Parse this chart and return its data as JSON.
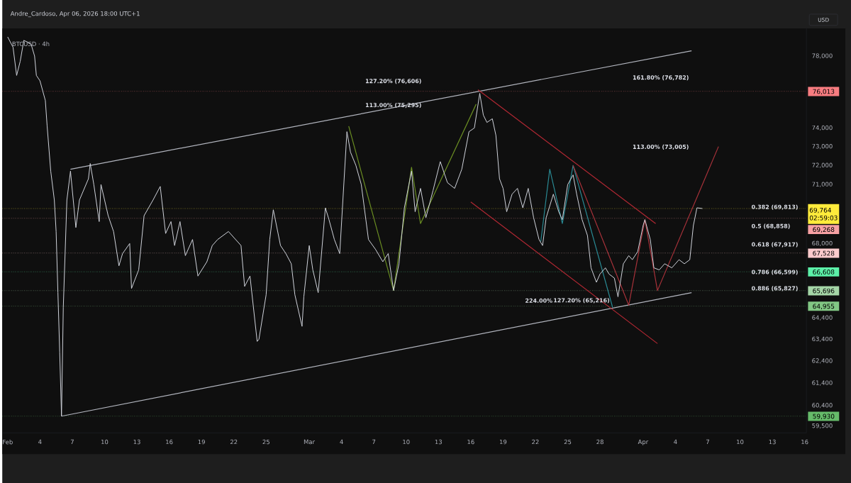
{
  "chart_data": {
    "type": "line",
    "title": "Andre_Cardoso, Apr 06, 2026 18:00 UTC+1",
    "subtitle": "BTCUSD · 4h",
    "ylabel": "USD",
    "log": true,
    "xlim": [
      "2026-01-31T12:00",
      "2026-04-16T04:00"
    ],
    "ylim": [
      59200,
      79600
    ],
    "xticks": [
      {
        "value": "2026-02-01",
        "label": "Feb"
      },
      {
        "value": "2026-02-04",
        "label": "4"
      },
      {
        "value": "2026-02-07",
        "label": "7"
      },
      {
        "value": "2026-02-10",
        "label": "10"
      },
      {
        "value": "2026-02-13",
        "label": "13"
      },
      {
        "value": "2026-02-16",
        "label": "16"
      },
      {
        "value": "2026-02-19",
        "label": "19"
      },
      {
        "value": "2026-02-22",
        "label": "22"
      },
      {
        "value": "2026-02-25",
        "label": "25"
      },
      {
        "value": "2026-03-01",
        "label": "Mar"
      },
      {
        "value": "2026-03-04",
        "label": "4"
      },
      {
        "value": "2026-03-07",
        "label": "7"
      },
      {
        "value": "2026-03-10",
        "label": "10"
      },
      {
        "value": "2026-03-13",
        "label": "13"
      },
      {
        "value": "2026-03-16",
        "label": "16"
      },
      {
        "value": "2026-03-19",
        "label": "19"
      },
      {
        "value": "2026-03-22",
        "label": "22"
      },
      {
        "value": "2026-03-25",
        "label": "25"
      },
      {
        "value": "2026-03-28",
        "label": "28"
      },
      {
        "value": "2026-04-01",
        "label": "Apr"
      },
      {
        "value": "2026-04-04",
        "label": "4"
      },
      {
        "value": "2026-04-07",
        "label": "7"
      },
      {
        "value": "2026-04-10",
        "label": "10"
      },
      {
        "value": "2026-04-13",
        "label": "13"
      },
      {
        "value": "2026-04-16",
        "label": "16"
      }
    ],
    "yticks": [
      {
        "value": 78000,
        "label": "78,000"
      },
      {
        "value": 74000,
        "label": "74,000"
      },
      {
        "value": 73000,
        "label": "73,000"
      },
      {
        "value": 72000,
        "label": "72,000"
      },
      {
        "value": 71000,
        "label": "71,000"
      },
      {
        "value": 68000,
        "label": "68,000"
      },
      {
        "value": 64400,
        "label": "64,400"
      },
      {
        "value": 63400,
        "label": "63,400"
      },
      {
        "value": 62400,
        "label": "62,400"
      },
      {
        "value": 61400,
        "label": "61,400"
      },
      {
        "value": 60400,
        "label": "60,400"
      },
      {
        "value": 59500,
        "label": "59,500"
      }
    ],
    "series": [
      {
        "color": "#d1d4dc",
        "x": [
          "2026-02-01T00:00",
          "2026-02-01T12:00",
          "2026-02-01T20:00",
          "2026-02-02T04:00",
          "2026-02-02T12:00",
          "2026-02-03T04:00",
          "2026-02-03T12:00",
          "2026-02-03T16:00",
          "2026-02-04T00:00",
          "2026-02-04T12:00",
          "2026-02-04T16:00",
          "2026-02-05T00:00",
          "2026-02-05T08:00",
          "2026-02-05T12:00",
          "2026-02-05T16:00",
          "2026-02-05T20:00",
          "2026-02-06T00:00",
          "2026-02-06T04:00",
          "2026-02-06T12:00",
          "2026-02-06T20:00",
          "2026-02-07T08:00",
          "2026-02-07T16:00",
          "2026-02-08T12:00",
          "2026-02-08T16:00",
          "2026-02-09T00:00",
          "2026-02-09T12:00",
          "2026-02-09T16:00",
          "2026-02-10T08:00",
          "2026-02-10T20:00",
          "2026-02-11T08:00",
          "2026-02-11T16:00",
          "2026-02-12T08:00",
          "2026-02-12T12:00",
          "2026-02-13T04:00",
          "2026-02-13T16:00",
          "2026-02-14T12:00",
          "2026-02-15T04:00",
          "2026-02-15T16:00",
          "2026-02-16T04:00",
          "2026-02-16T12:00",
          "2026-02-17T00:00",
          "2026-02-17T12:00",
          "2026-02-18T04:00",
          "2026-02-18T16:00",
          "2026-02-19T12:00",
          "2026-02-20T00:00",
          "2026-02-20T12:00",
          "2026-02-21T12:00",
          "2026-02-22T16:00",
          "2026-02-23T00:00",
          "2026-02-23T12:00",
          "2026-02-24T04:00",
          "2026-02-24T08:00",
          "2026-02-25T00:00",
          "2026-02-25T08:00",
          "2026-02-25T16:00",
          "2026-02-26T08:00",
          "2026-02-26T20:00",
          "2026-02-27T08:00",
          "2026-02-27T16:00",
          "2026-02-28T08:00",
          "2026-02-28T12:00",
          "2026-03-01T00:00",
          "2026-03-01T08:00",
          "2026-03-01T20:00",
          "2026-03-02T12:00",
          "2026-03-02T20:00",
          "2026-03-03T08:00",
          "2026-03-03T20:00",
          "2026-03-04T12:00",
          "2026-03-04T20:00",
          "2026-03-05T08:00",
          "2026-03-05T20:00",
          "2026-03-06T12:00",
          "2026-03-07T04:00",
          "2026-03-07T20:00",
          "2026-03-08T08:00",
          "2026-03-08T20:00",
          "2026-03-09T08:00",
          "2026-03-09T20:00",
          "2026-03-10T12:00",
          "2026-03-10T20:00",
          "2026-03-11T08:00",
          "2026-03-11T20:00",
          "2026-03-12T12:00",
          "2026-03-13T04:00",
          "2026-03-13T20:00",
          "2026-03-14T12:00",
          "2026-03-15T04:00",
          "2026-03-15T20:00",
          "2026-03-16T08:00",
          "2026-03-16T20:00",
          "2026-03-17T04:00",
          "2026-03-17T12:00",
          "2026-03-18T00:00",
          "2026-03-18T08:00",
          "2026-03-18T16:00",
          "2026-03-19T00:00",
          "2026-03-19T08:00",
          "2026-03-19T20:00",
          "2026-03-20T08:00",
          "2026-03-20T20:00",
          "2026-03-21T08:00",
          "2026-03-21T20:00",
          "2026-03-22T08:00",
          "2026-03-22T16:00",
          "2026-03-23T00:00",
          "2026-03-23T16:00",
          "2026-03-24T04:00",
          "2026-03-24T12:00",
          "2026-03-25T00:00",
          "2026-03-25T12:00",
          "2026-03-25T20:00",
          "2026-03-26T08:00",
          "2026-03-26T20:00",
          "2026-03-27T04:00",
          "2026-03-27T16:00",
          "2026-03-28T00:00",
          "2026-03-28T12:00",
          "2026-03-28T20:00",
          "2026-03-29T08:00",
          "2026-03-29T16:00",
          "2026-03-30T04:00",
          "2026-03-30T16:00",
          "2026-03-31T00:00",
          "2026-03-31T12:00",
          "2026-04-01T00:00",
          "2026-04-01T04:00",
          "2026-04-01T16:00",
          "2026-04-02T00:00",
          "2026-04-02T12:00",
          "2026-04-03T00:00",
          "2026-04-03T16:00",
          "2026-04-04T08:00",
          "2026-04-04T20:00",
          "2026-04-05T08:00",
          "2026-04-05T16:00",
          "2026-04-06T00:00",
          "2026-04-06T12:00"
        ],
        "values": [
          79100,
          78500,
          76900,
          77700,
          78900,
          78700,
          78000,
          76900,
          76600,
          75500,
          74100,
          71700,
          70200,
          68600,
          65600,
          62800,
          59930,
          64900,
          70200,
          71700,
          68800,
          70200,
          71300,
          72100,
          71000,
          69100,
          71000,
          69400,
          68600,
          66900,
          67500,
          68000,
          65800,
          66700,
          69400,
          70200,
          70900,
          68500,
          69100,
          67900,
          69100,
          67400,
          68200,
          66400,
          67100,
          67900,
          68200,
          68600,
          67900,
          65900,
          66400,
          63300,
          63400,
          65500,
          68200,
          69700,
          67900,
          67500,
          67000,
          65500,
          64000,
          65400,
          67900,
          66700,
          65600,
          69800,
          69200,
          68200,
          67500,
          73800,
          72700,
          72000,
          71000,
          68200,
          67700,
          67100,
          67500,
          65700,
          67000,
          69800,
          71700,
          69600,
          70800,
          69300,
          70700,
          72200,
          71100,
          70800,
          71800,
          73800,
          74000,
          75900,
          74700,
          74300,
          74500,
          73600,
          71300,
          70800,
          69600,
          70500,
          70800,
          69800,
          70800,
          69300,
          68200,
          67900,
          69300,
          70500,
          69600,
          69200,
          71000,
          71500,
          70500,
          69200,
          68400,
          66800,
          66100,
          66500,
          66800,
          66500,
          66300,
          65400,
          67000,
          67400,
          67200,
          67600,
          68900,
          69200,
          68200,
          66800,
          66700,
          67000,
          66800,
          67200,
          67000,
          67200,
          68900,
          69800,
          69764
        ]
      },
      {
        "color": "#b2b5be",
        "x": [
          "2026-02-06T20:00",
          "2026-04-05T12:00"
        ],
        "values": [
          71800,
          78300
        ]
      },
      {
        "color": "#b2b5be",
        "x": [
          "2026-02-06T00:00",
          "2026-04-05T12:00"
        ],
        "values": [
          59930,
          65600
        ]
      },
      {
        "color": "#b22833",
        "x": [
          "2026-03-16T16:00",
          "2026-04-02T04:00"
        ],
        "values": [
          76100,
          69000
        ]
      },
      {
        "color": "#b22833",
        "x": [
          "2026-03-16T00:00",
          "2026-04-02T08:00"
        ],
        "values": [
          70100,
          63200
        ]
      },
      {
        "color": "#6b8e23",
        "x": [
          "2026-03-04T16:00",
          "2026-03-08T20:00",
          "2026-03-10T12:00",
          "2026-03-11T08:00",
          "2026-03-16T12:00"
        ],
        "values": [
          74100,
          65700,
          71900,
          69000,
          75300
        ]
      },
      {
        "color": "#2a8a94",
        "x": [
          "2026-03-22T12:00",
          "2026-03-23T08:00",
          "2026-03-24T12:00",
          "2026-03-25T12:00",
          "2026-03-29T04:00"
        ],
        "values": [
          68100,
          71800,
          69000,
          72000,
          64900
        ]
      },
      {
        "color": "#a8323a",
        "x": [
          "2026-03-25T12:00",
          "2026-03-30T16:00",
          "2026-04-01T04:00",
          "2026-04-02T08:00",
          "2026-04-08T00:00"
        ],
        "values": [
          72000,
          65000,
          69200,
          65700,
          73000
        ]
      }
    ],
    "ref_lines": [
      {
        "axis": "y",
        "value": 76013,
        "label": "76,013",
        "color": "#f77c80",
        "line_style": "dotted"
      },
      {
        "axis": "y",
        "value": 69764,
        "label": "69,764",
        "color": "#ffeb3b",
        "line_style": "dotted"
      },
      {
        "axis": "y",
        "value": 69268,
        "label": "69,268",
        "color": "#f7a1a4",
        "line_style": "dotted"
      },
      {
        "axis": "y",
        "value": 67528,
        "label": "67,528",
        "color": "#fccbcd",
        "line_style": "dotted"
      },
      {
        "axis": "y",
        "value": 66608,
        "label": "66,608",
        "color": "#5cf0a8",
        "line_style": "dotted"
      },
      {
        "axis": "y",
        "value": 65696,
        "label": "65,696",
        "color": "#a5d6a7",
        "line_style": "dotted"
      },
      {
        "axis": "y",
        "value": 64955,
        "label": "64,955",
        "color": "#81c784",
        "line_style": "dotted"
      },
      {
        "axis": "y",
        "value": 59930,
        "label": "59,930",
        "color": "#66bb6a",
        "line_style": "dotted"
      }
    ],
    "annotations": [
      "02:59:03",
      "127.20% (76,606)",
      "113.00% (75,295)",
      "161.80% (76,782)",
      "113.00% (73,005)",
      "224.00%",
      "127.20% (65,216)",
      "0.382 (69,813)",
      "0.5 (68,858)",
      "0.618 (67,917)",
      "0.786 (66,599)",
      "0.886 (65,827)"
    ]
  }
}
